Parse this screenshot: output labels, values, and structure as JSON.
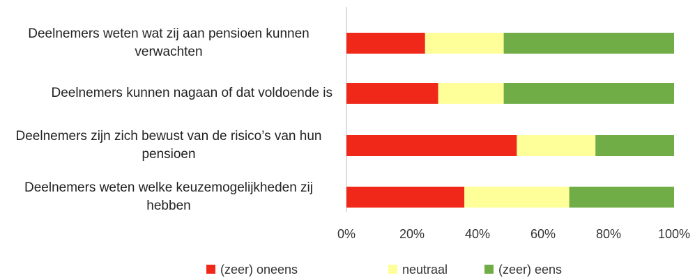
{
  "chart_data": {
    "type": "stacked_barh",
    "categories": [
      "Deelnemers weten wat zij aan pensioen kunnen verwachten",
      "Deelnemers kunnen nagaan of dat voldoende is",
      "Deelnemers zijn zich bewust van de risico’s van hun pensioen",
      "Deelnemers weten welke keuzemogelijkheden zij hebben"
    ],
    "series": [
      {
        "name": "(zeer) oneens",
        "color": "#f0281a",
        "values": [
          24,
          28,
          52,
          36
        ]
      },
      {
        "name": "neutraal",
        "color": "#ffff99",
        "values": [
          24,
          20,
          24,
          32
        ]
      },
      {
        "name": "(zeer) eens",
        "color": "#70ad47",
        "values": [
          52,
          52,
          24,
          32
        ]
      }
    ],
    "xlim": [
      0,
      100
    ],
    "xticks": [
      {
        "value": 0,
        "label": "0%"
      },
      {
        "value": 20,
        "label": "20%"
      },
      {
        "value": 40,
        "label": "40%"
      },
      {
        "value": 60,
        "label": "60%"
      },
      {
        "value": 80,
        "label": "80%"
      },
      {
        "value": 100,
        "label": "100%"
      }
    ],
    "legend": "bottom"
  }
}
